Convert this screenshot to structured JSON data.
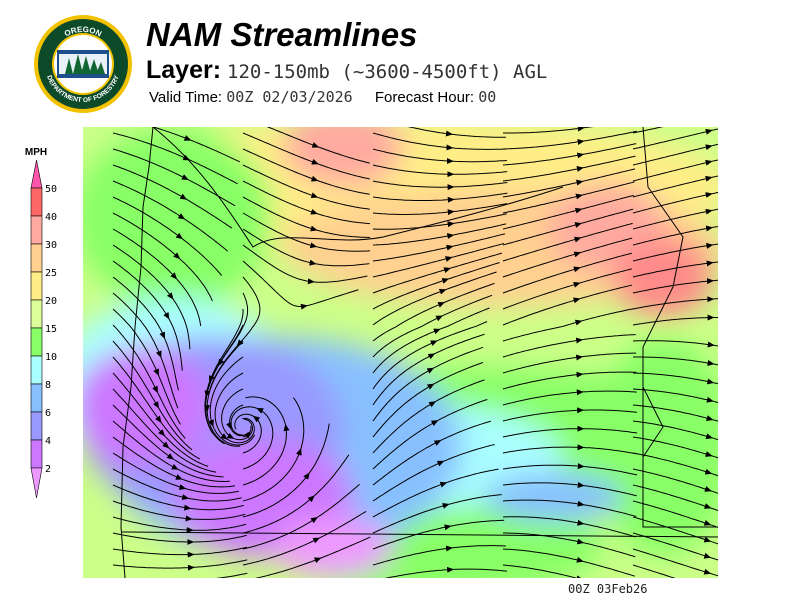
{
  "header": {
    "title": "NAM Streamlines",
    "layer_label": "Layer:",
    "layer_value": "120-150mb (~3600-4500ft) AGL",
    "valid_time_label": "Valid Time:",
    "valid_time_value": "00Z 02/03/2026",
    "forecast_hour_label": "Forecast Hour:",
    "forecast_hour_value": "00"
  },
  "logo": {
    "top_text": "OREGON",
    "bottom_text": "DEPARTMENT OF FORESTRY"
  },
  "legend": {
    "unit": "MPH",
    "ticks": [
      "50",
      "40",
      "30",
      "25",
      "20",
      "15",
      "10",
      "8",
      "6",
      "4",
      "2"
    ],
    "colors": [
      "#ff6666",
      "#ffaaa0",
      "#ffd090",
      "#ffee88",
      "#ddff99",
      "#88ff66",
      "#aaffff",
      "#88c0ff",
      "#9999ff",
      "#cc77ff"
    ],
    "over_color": "#ff55aa",
    "under_color": "#ee99ff"
  },
  "map": {
    "timestamp": "00Z 03Feb26"
  }
}
